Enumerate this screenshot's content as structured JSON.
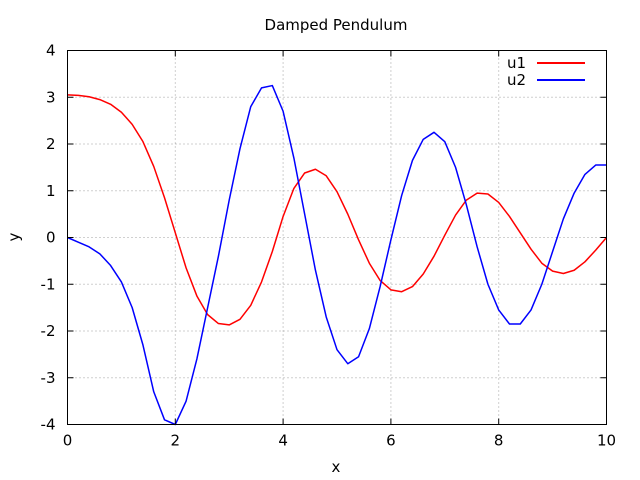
{
  "chart_data": {
    "type": "line",
    "title": "Damped Pendulum",
    "xlabel": "x",
    "ylabel": "y",
    "xlim": [
      0,
      10
    ],
    "ylim": [
      -4,
      4
    ],
    "xticks": [
      0,
      2,
      4,
      6,
      8,
      10
    ],
    "yticks": [
      -4,
      -3,
      -2,
      -1,
      0,
      1,
      2,
      3,
      4
    ],
    "grid": true,
    "legend_position": "top-right",
    "x": [
      0,
      0.2,
      0.4,
      0.6,
      0.8,
      1.0,
      1.2,
      1.4,
      1.6,
      1.8,
      2.0,
      2.2,
      2.4,
      2.6,
      2.8,
      3.0,
      3.2,
      3.4,
      3.6,
      3.8,
      4.0,
      4.2,
      4.4,
      4.6,
      4.8,
      5.0,
      5.2,
      5.4,
      5.6,
      5.8,
      6.0,
      6.2,
      6.4,
      6.6,
      6.8,
      7.0,
      7.2,
      7.4,
      7.6,
      7.8,
      8.0,
      8.2,
      8.4,
      8.6,
      8.8,
      9.0,
      9.2,
      9.4,
      9.6,
      9.8,
      10.0
    ],
    "series": [
      {
        "name": "u1",
        "color": "#ff0000",
        "values": [
          3.05,
          3.04,
          3.01,
          2.95,
          2.85,
          2.68,
          2.42,
          2.05,
          1.52,
          0.85,
          0.1,
          -0.65,
          -1.25,
          -1.65,
          -1.84,
          -1.87,
          -1.75,
          -1.45,
          -0.95,
          -0.3,
          0.45,
          1.05,
          1.38,
          1.46,
          1.32,
          0.98,
          0.5,
          -0.05,
          -0.55,
          -0.92,
          -1.12,
          -1.16,
          -1.05,
          -0.78,
          -0.4,
          0.05,
          0.48,
          0.8,
          0.95,
          0.93,
          0.75,
          0.45,
          0.1,
          -0.25,
          -0.55,
          -0.72,
          -0.77,
          -0.7,
          -0.52,
          -0.27,
          0.0
        ]
      },
      {
        "name": "u2",
        "color": "#0000ff",
        "values": [
          0.0,
          -0.1,
          -0.2,
          -0.35,
          -0.6,
          -0.95,
          -1.5,
          -2.3,
          -3.3,
          -3.9,
          -4.0,
          -3.5,
          -2.6,
          -1.5,
          -0.4,
          0.8,
          1.9,
          2.8,
          3.2,
          3.25,
          2.7,
          1.7,
          0.5,
          -0.7,
          -1.7,
          -2.4,
          -2.7,
          -2.55,
          -1.95,
          -1.05,
          -0.05,
          0.9,
          1.65,
          2.1,
          2.25,
          2.05,
          1.5,
          0.7,
          -0.2,
          -1.0,
          -1.55,
          -1.85,
          -1.85,
          -1.55,
          -1.0,
          -0.3,
          0.4,
          0.95,
          1.35,
          1.55,
          1.55
        ]
      }
    ]
  }
}
